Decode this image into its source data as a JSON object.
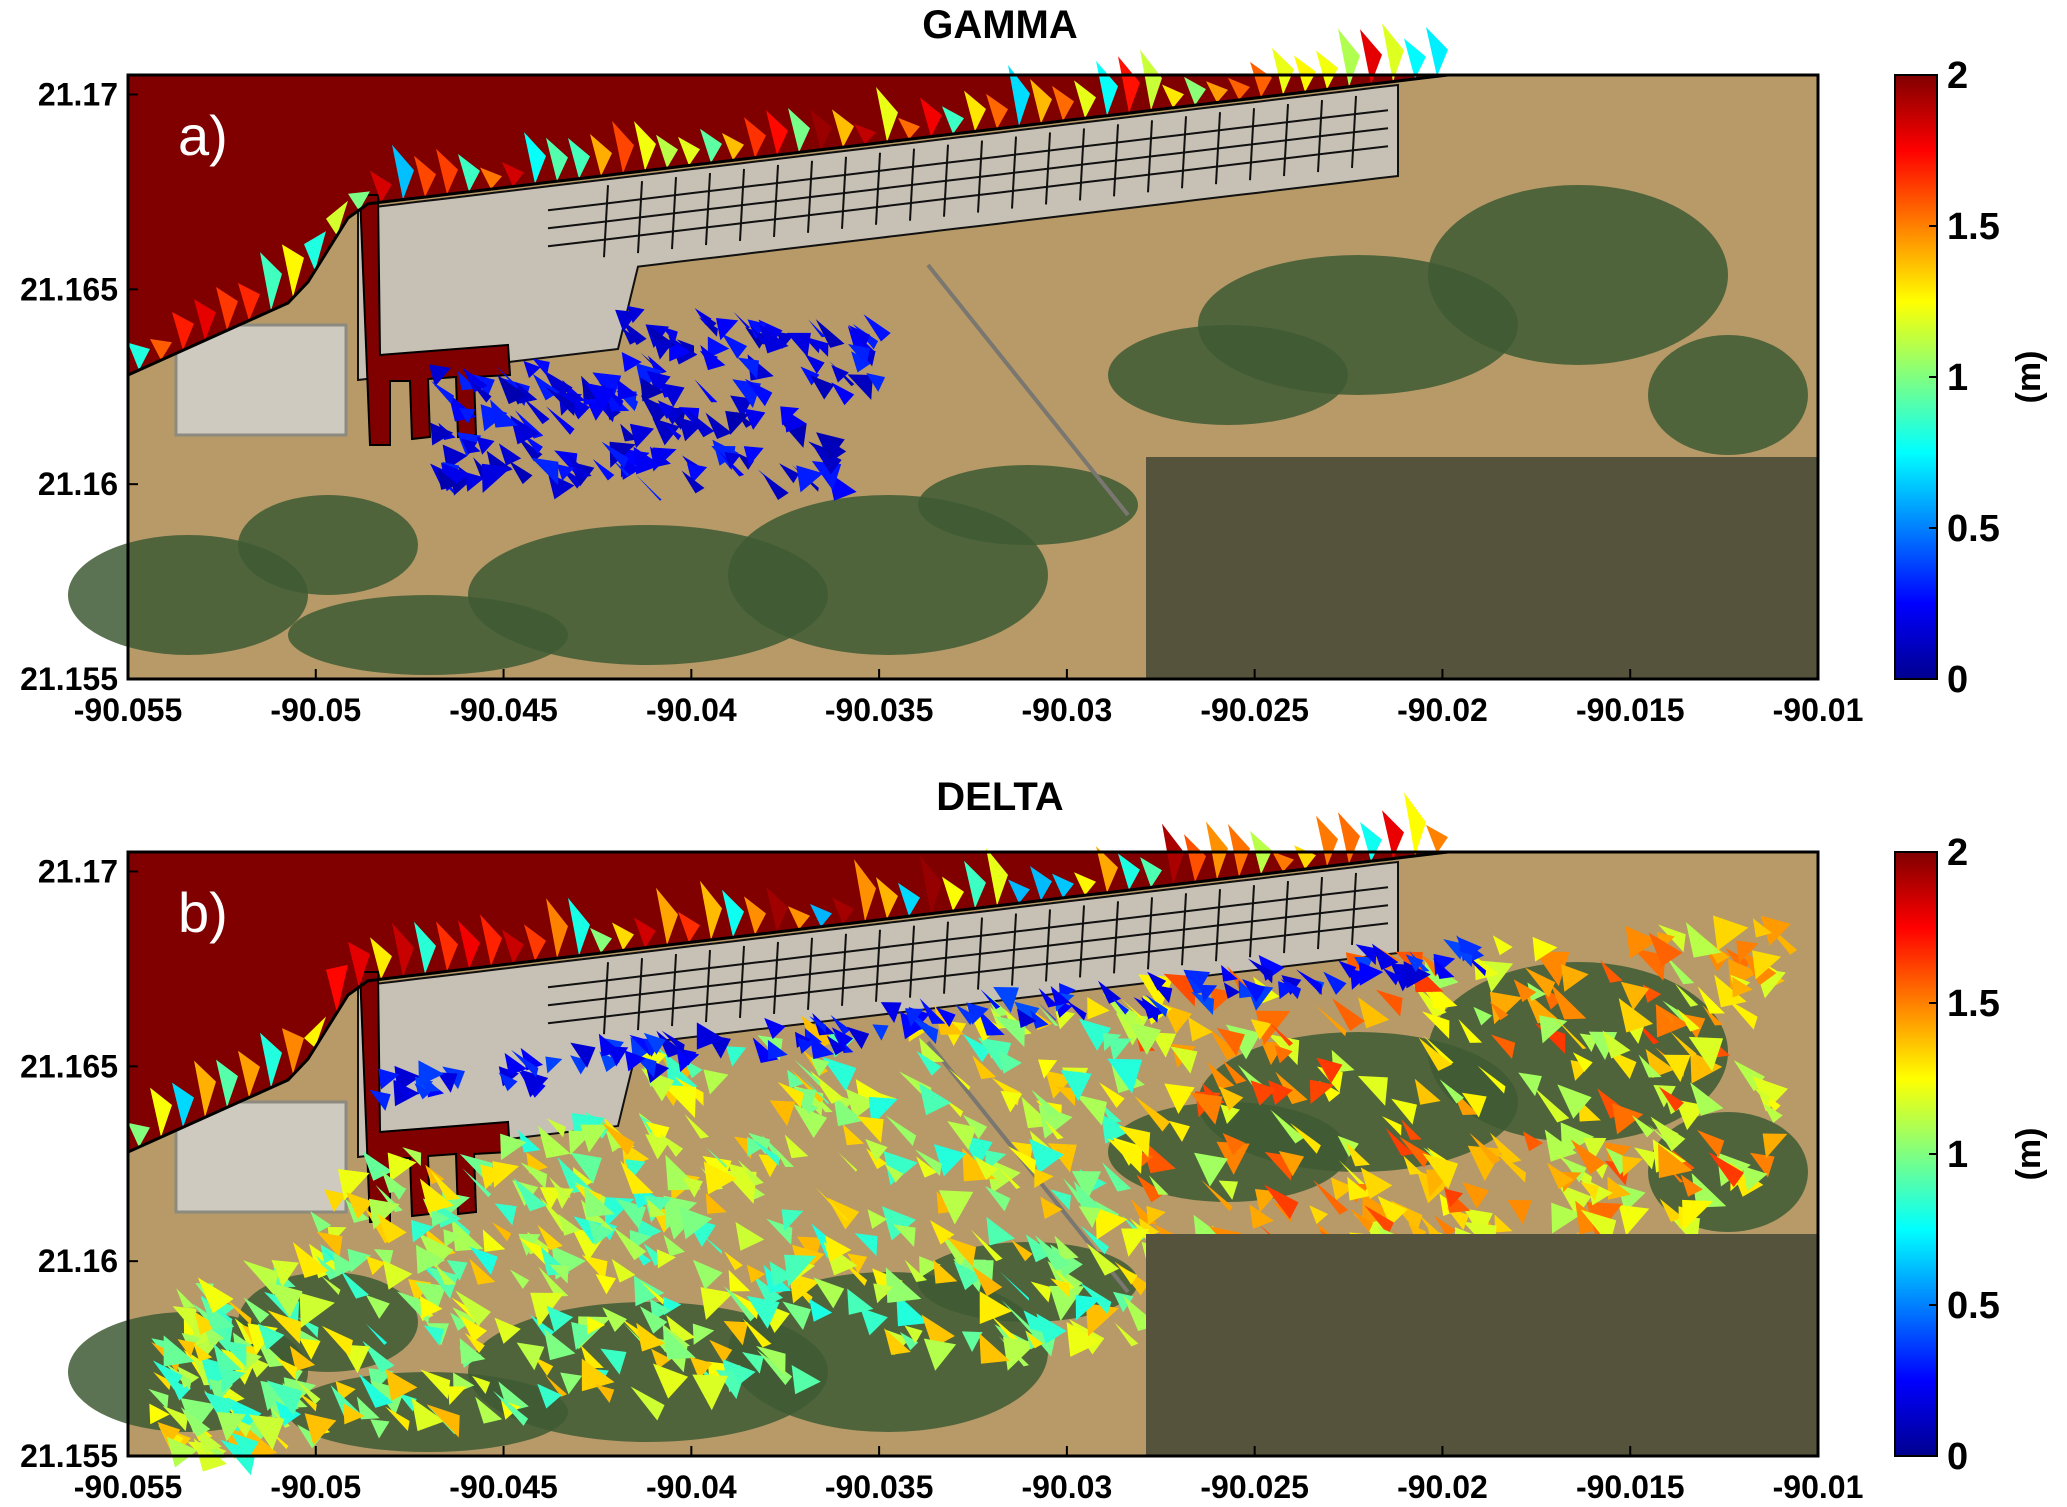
{
  "panels": [
    {
      "id": "gamma",
      "title": "GAMMA",
      "label": "a)",
      "x_ticks": [
        "-90.055",
        "-90.05",
        "-90.045",
        "-90.04",
        "-90.035",
        "-90.03",
        "-90.025",
        "-90.02",
        "-90.015",
        "-90.01"
      ],
      "y_ticks": [
        "21.155",
        "21.16",
        "21.165",
        "21.17"
      ],
      "colorbar": {
        "ticks": [
          "0",
          "0.5",
          "1",
          "1.5",
          "2"
        ],
        "unit": "(m)"
      },
      "inland_flood_level_m": 0.2
    },
    {
      "id": "delta",
      "title": "DELTA",
      "label": "b)",
      "x_ticks": [
        "-90.055",
        "-90.05",
        "-90.045",
        "-90.04",
        "-90.035",
        "-90.03",
        "-90.025",
        "-90.02",
        "-90.015",
        "-90.01"
      ],
      "y_ticks": [
        "21.155",
        "21.16",
        "21.165",
        "21.17"
      ],
      "colorbar": {
        "ticks": [
          "0",
          "0.5",
          "1",
          "1.5",
          "2"
        ],
        "unit": "(m)"
      },
      "inland_flood_level_m": 1.1
    }
  ],
  "map": {
    "x_range": [
      -90.055,
      -90.01
    ],
    "y_range": [
      21.155,
      21.1705
    ],
    "value_range_m": [
      0,
      2
    ],
    "colormap": [
      "#00008f",
      "#0000ff",
      "#0080ff",
      "#00ffff",
      "#80ff80",
      "#ffff00",
      "#ff8000",
      "#ff0000",
      "#800000"
    ],
    "sea_color": "#800000",
    "masked_box_color": "#55533b",
    "land_color": "#b79a68",
    "vegetation_color": "#3e5a34",
    "urban_color": "#c7c0b4"
  }
}
